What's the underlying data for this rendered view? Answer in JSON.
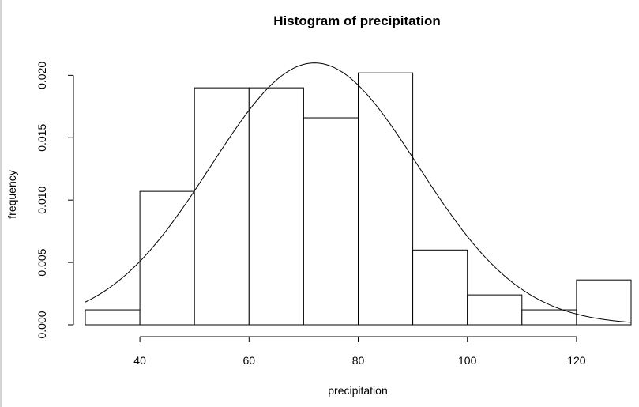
{
  "chart_data": {
    "type": "bar",
    "title": "Histogram of precipitation",
    "xlabel": "precipitation",
    "ylabel": "frequency",
    "bins": [
      {
        "x0": 30,
        "x1": 40,
        "value": 0.0012
      },
      {
        "x0": 40,
        "x1": 50,
        "value": 0.0107
      },
      {
        "x0": 50,
        "x1": 60,
        "value": 0.019
      },
      {
        "x0": 60,
        "x1": 70,
        "value": 0.019
      },
      {
        "x0": 70,
        "x1": 80,
        "value": 0.0166
      },
      {
        "x0": 80,
        "x1": 90,
        "value": 0.0202
      },
      {
        "x0": 90,
        "x1": 100,
        "value": 0.006
      },
      {
        "x0": 100,
        "x1": 110,
        "value": 0.0024
      },
      {
        "x0": 110,
        "x1": 120,
        "value": 0.0012
      },
      {
        "x0": 120,
        "x1": 130,
        "value": 0.0036
      }
    ],
    "density_curve": {
      "type": "normal",
      "mean": 72,
      "sd": 19,
      "x_range": [
        30,
        130
      ]
    },
    "xlim": [
      30,
      130
    ],
    "ylim": [
      0,
      0.0211
    ],
    "x_ticks": [
      "40",
      "60",
      "80",
      "100",
      "120"
    ],
    "y_ticks": [
      "0.000",
      "0.005",
      "0.010",
      "0.015",
      "0.020"
    ],
    "grid": false,
    "legend": "none"
  }
}
